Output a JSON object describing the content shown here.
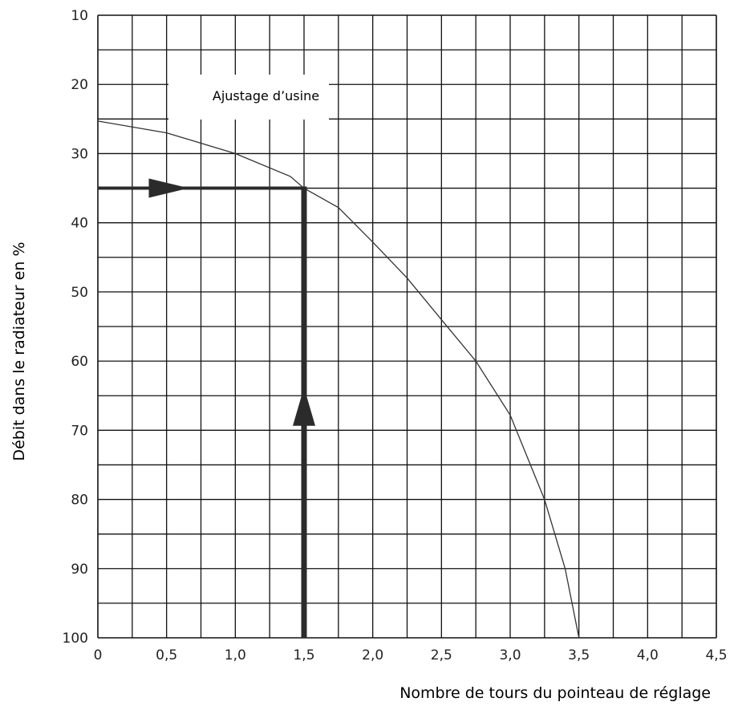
{
  "chart_data": {
    "type": "line",
    "xlabel": "Nombre de tours du pointeau de réglage",
    "ylabel": "Débit dans le radiateur en %",
    "xlim": [
      0,
      4.5
    ],
    "ylim": [
      10,
      100
    ],
    "y_inverted": true,
    "grid": true,
    "x_ticks": [
      {
        "value": 0,
        "label": "0"
      },
      {
        "value": 0.5,
        "label": "0,5"
      },
      {
        "value": 1.0,
        "label": "1,0"
      },
      {
        "value": 1.5,
        "label": "1,5"
      },
      {
        "value": 2.0,
        "label": "2,0"
      },
      {
        "value": 2.5,
        "label": "2,5"
      },
      {
        "value": 3.0,
        "label": "3,0"
      },
      {
        "value": 3.5,
        "label": "3,5"
      },
      {
        "value": 4.0,
        "label": "4,0"
      },
      {
        "value": 4.5,
        "label": "4,5"
      }
    ],
    "y_ticks": [
      {
        "value": 10,
        "label": "10"
      },
      {
        "value": 20,
        "label": "20"
      },
      {
        "value": 30,
        "label": "30"
      },
      {
        "value": 40,
        "label": "40"
      },
      {
        "value": 50,
        "label": "50"
      },
      {
        "value": 60,
        "label": "60"
      },
      {
        "value": 70,
        "label": "70"
      },
      {
        "value": 80,
        "label": "80"
      },
      {
        "value": 90,
        "label": "90"
      },
      {
        "value": 100,
        "label": "100"
      }
    ],
    "series": [
      {
        "points": [
          [
            0,
            25.3
          ],
          [
            0.5,
            27
          ],
          [
            1.0,
            30
          ],
          [
            1.4,
            33.3
          ],
          [
            1.5,
            35
          ],
          [
            1.75,
            37.8
          ],
          [
            2.0,
            42.8
          ],
          [
            2.25,
            48
          ],
          [
            2.5,
            54
          ],
          [
            2.75,
            60
          ],
          [
            3.0,
            67.8
          ],
          [
            3.25,
            80
          ],
          [
            3.4,
            90
          ],
          [
            3.5,
            100
          ]
        ]
      }
    ],
    "annotations": [
      {
        "text": "Ajustage d’usine",
        "x": 1.05,
        "y": 21.5
      },
      {
        "type": "arrow-line-vertical",
        "x": 1.5,
        "y_from": 100,
        "y_to": 35
      },
      {
        "type": "arrow-line-horizontal",
        "y": 35,
        "x_from": 0,
        "x_to": 1.5
      }
    ]
  }
}
